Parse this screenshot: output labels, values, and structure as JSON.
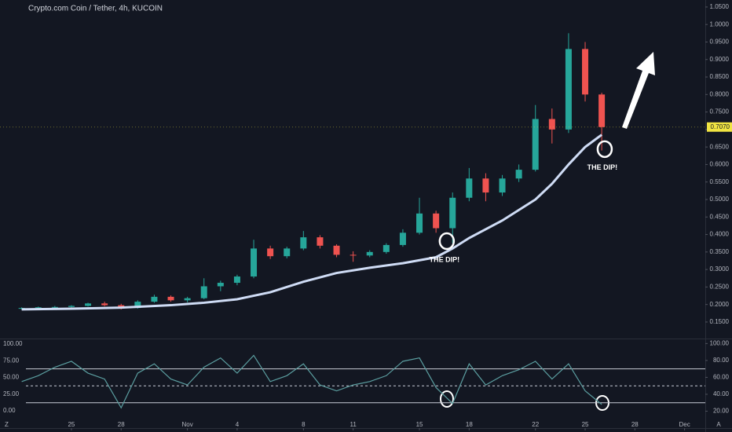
{
  "chart_data": [
    {
      "type": "candlestick",
      "title": "Crypto.com Coin / Tether, 4h, KUCOIN",
      "up_color": "#26a69a",
      "down_color": "#ef5350",
      "x": [
        -3,
        -2,
        -1,
        0,
        1,
        2,
        3,
        4,
        5,
        6,
        7,
        8,
        9,
        10,
        11,
        12,
        13,
        14,
        15,
        16,
        17,
        18,
        19,
        20,
        21,
        22,
        23,
        24,
        25,
        26,
        27,
        28,
        29,
        30,
        31,
        32
      ],
      "open": [
        0.188,
        0.19,
        0.192,
        0.193,
        0.196,
        0.203,
        0.198,
        0.19,
        0.208,
        0.222,
        0.212,
        0.218,
        0.252,
        0.262,
        0.28,
        0.36,
        0.338,
        0.36,
        0.392,
        0.368,
        0.342,
        0.34,
        0.35,
        0.37,
        0.405,
        0.46,
        0.418,
        0.505,
        0.56,
        0.52,
        0.56,
        0.585,
        0.73,
        0.7,
        0.93,
        0.8
      ],
      "high": [
        0.192,
        0.194,
        0.196,
        0.198,
        0.205,
        0.208,
        0.202,
        0.212,
        0.228,
        0.226,
        0.222,
        0.275,
        0.268,
        0.285,
        0.385,
        0.368,
        0.365,
        0.41,
        0.398,
        0.372,
        0.352,
        0.355,
        0.375,
        0.415,
        0.505,
        0.468,
        0.52,
        0.59,
        0.575,
        0.57,
        0.6,
        0.77,
        0.76,
        0.975,
        0.95,
        0.805
      ],
      "low": [
        0.186,
        0.188,
        0.19,
        0.191,
        0.194,
        0.195,
        0.186,
        0.188,
        0.205,
        0.208,
        0.206,
        0.215,
        0.238,
        0.255,
        0.275,
        0.33,
        0.332,
        0.355,
        0.36,
        0.335,
        0.322,
        0.335,
        0.345,
        0.365,
        0.4,
        0.405,
        0.375,
        0.495,
        0.495,
        0.51,
        0.55,
        0.58,
        0.66,
        0.69,
        0.78,
        0.64
      ],
      "close": [
        0.19,
        0.192,
        0.193,
        0.196,
        0.203,
        0.198,
        0.19,
        0.208,
        0.222,
        0.212,
        0.218,
        0.252,
        0.262,
        0.28,
        0.36,
        0.338,
        0.36,
        0.392,
        0.368,
        0.342,
        0.34,
        0.35,
        0.37,
        0.405,
        0.46,
        0.418,
        0.505,
        0.56,
        0.52,
        0.56,
        0.585,
        0.73,
        0.7,
        0.93,
        0.8,
        0.707
      ],
      "series": [
        {
          "color": "#cfdcf5",
          "x": [
            -3,
            0,
            3,
            6,
            8,
            10,
            12,
            14,
            16,
            18,
            20,
            22,
            23,
            24,
            26,
            28,
            29,
            30,
            31,
            32
          ],
          "values": [
            0.186,
            0.188,
            0.191,
            0.198,
            0.205,
            0.215,
            0.235,
            0.265,
            0.29,
            0.305,
            0.318,
            0.335,
            0.36,
            0.39,
            0.44,
            0.5,
            0.545,
            0.6,
            0.65,
            0.685
          ]
        }
      ],
      "last_price": {
        "value": 0.707,
        "label": "0.7070"
      },
      "annotations": [
        {
          "text": "THE DIP!",
          "x": 22.65,
          "y": 0.381
        },
        {
          "text": "THE DIP!",
          "x": 32.18,
          "y": 0.644
        }
      ],
      "xlim": [
        -4.31,
        38.25
      ],
      "ylim": [
        0.105,
        1.07
      ],
      "yticks": [
        {
          "value": 1.05,
          "label": "1.0500"
        },
        {
          "value": 1.0,
          "label": "1.0000"
        },
        {
          "value": 0.95,
          "label": "0.9500"
        },
        {
          "value": 0.9,
          "label": "0.9000"
        },
        {
          "value": 0.85,
          "label": "0.8500"
        },
        {
          "value": 0.8,
          "label": "0.8000"
        },
        {
          "value": 0.75,
          "label": "0.7500"
        },
        {
          "value": 0.7,
          "label": "0.7000"
        },
        {
          "value": 0.65,
          "label": "0.6500"
        },
        {
          "value": 0.6,
          "label": "0.6000"
        },
        {
          "value": 0.55,
          "label": "0.5500"
        },
        {
          "value": 0.5,
          "label": "0.5000"
        },
        {
          "value": 0.45,
          "label": "0.4500"
        },
        {
          "value": 0.4,
          "label": "0.4000"
        },
        {
          "value": 0.35,
          "label": "0.3500"
        },
        {
          "value": 0.3,
          "label": "0.3000"
        },
        {
          "value": 0.25,
          "label": "0.2500"
        },
        {
          "value": 0.2,
          "label": "0.2000"
        },
        {
          "value": 0.15,
          "label": "0.1500"
        }
      ],
      "xticks": [
        {
          "value": 0,
          "label": "25"
        },
        {
          "value": 3,
          "label": "28"
        },
        {
          "value": 7,
          "label": "Nov"
        },
        {
          "value": 10,
          "label": "4"
        },
        {
          "value": 14,
          "label": "8"
        },
        {
          "value": 17,
          "label": "11"
        },
        {
          "value": 21,
          "label": "15"
        },
        {
          "value": 24,
          "label": "18"
        },
        {
          "value": 28,
          "label": "22"
        },
        {
          "value": 31,
          "label": "25"
        },
        {
          "value": 34,
          "label": "28"
        },
        {
          "value": 37,
          "label": "Dec"
        }
      ],
      "corner_labels": [
        "Z",
        "A"
      ]
    },
    {
      "type": "line",
      "series": [
        {
          "color": "#5b9ea0",
          "axis": "y2",
          "x": [
            -3,
            -2,
            -1,
            0,
            1,
            2,
            3,
            4,
            5,
            6,
            7,
            8,
            9,
            10,
            11,
            12,
            13,
            14,
            15,
            16,
            17,
            18,
            19,
            20,
            21,
            22,
            23,
            24,
            25,
            26,
            27,
            28,
            29,
            30,
            31,
            32
          ],
          "values": [
            55,
            62,
            72,
            79,
            65,
            58,
            24,
            65,
            76,
            58,
            51,
            72,
            83,
            65,
            86,
            55,
            62,
            76,
            51,
            44,
            51,
            55,
            62,
            79,
            83,
            48,
            29,
            76,
            51,
            62,
            69,
            79,
            58,
            76,
            44,
            28
          ]
        }
      ],
      "levels": [
        70,
        50,
        30
      ],
      "ylim": [
        -26,
        107
      ],
      "yticks": [
        {
          "value": 100,
          "label": "100.00"
        },
        {
          "value": 75,
          "label": "75.00"
        },
        {
          "value": 50,
          "label": "50.00"
        },
        {
          "value": 25,
          "label": "25.00"
        },
        {
          "value": 0,
          "label": "0.00"
        }
      ],
      "y2lim": [
        0,
        105
      ],
      "y2ticks": [
        {
          "value": 100,
          "label": "100.00"
        },
        {
          "value": 80,
          "label": "80.00"
        },
        {
          "value": 60,
          "label": "60.00"
        },
        {
          "value": 40,
          "label": "40.00"
        },
        {
          "value": 20,
          "label": "20.00"
        }
      ]
    }
  ]
}
